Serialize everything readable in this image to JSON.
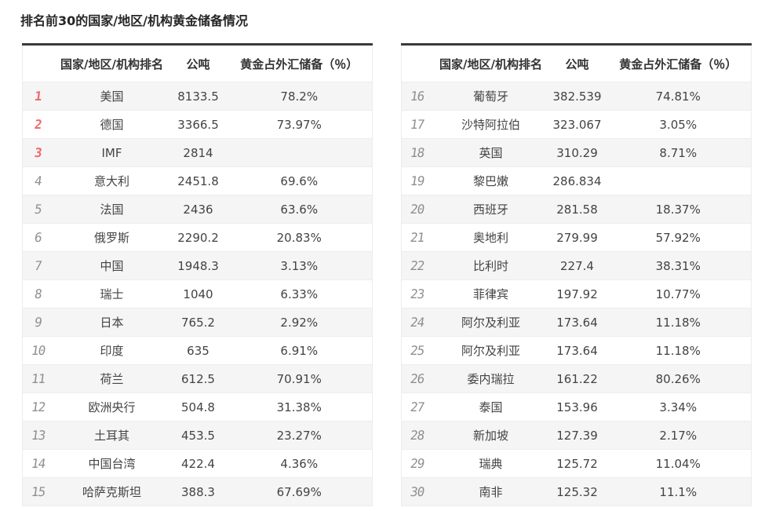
{
  "page": {
    "title": "排名前30的国家/地区/机构黄金储备情况"
  },
  "colors": {
    "accent_red": "#ef6a6e",
    "rank_gray": "#8f8f8f",
    "table_top_border": "#3a3a3a",
    "stripe_gray": "#f5f5f5"
  },
  "table_headers": [
    "国家/地区/机构排名",
    "公吨",
    "黄金占外汇储备（％）"
  ],
  "tables": [
    {
      "rows": [
        {
          "rank": "1",
          "name": "美国",
          "tonnes": "8133.5",
          "pct": "78.2%"
        },
        {
          "rank": "2",
          "name": "德国",
          "tonnes": "3366.5",
          "pct": "73.97%"
        },
        {
          "rank": "3",
          "name": "IMF",
          "tonnes": "2814",
          "pct": ""
        },
        {
          "rank": "4",
          "name": "意大利",
          "tonnes": "2451.8",
          "pct": "69.6%"
        },
        {
          "rank": "5",
          "name": "法国",
          "tonnes": "2436",
          "pct": "63.6%"
        },
        {
          "rank": "6",
          "name": "俄罗斯",
          "tonnes": "2290.2",
          "pct": "20.83%"
        },
        {
          "rank": "7",
          "name": "中国",
          "tonnes": "1948.3",
          "pct": "3.13%"
        },
        {
          "rank": "8",
          "name": "瑞士",
          "tonnes": "1040",
          "pct": "6.33%"
        },
        {
          "rank": "9",
          "name": "日本",
          "tonnes": "765.2",
          "pct": "2.92%"
        },
        {
          "rank": "10",
          "name": "印度",
          "tonnes": "635",
          "pct": "6.91%"
        },
        {
          "rank": "11",
          "name": "荷兰",
          "tonnes": "612.5",
          "pct": "70.91%"
        },
        {
          "rank": "12",
          "name": "欧洲央行",
          "tonnes": "504.8",
          "pct": "31.38%"
        },
        {
          "rank": "13",
          "name": "土耳其",
          "tonnes": "453.5",
          "pct": "23.27%"
        },
        {
          "rank": "14",
          "name": "中国台湾",
          "tonnes": "422.4",
          "pct": "4.36%"
        },
        {
          "rank": "15",
          "name": "哈萨克斯坦",
          "tonnes": "388.3",
          "pct": "67.69%"
        }
      ]
    },
    {
      "rows": [
        {
          "rank": "16",
          "name": "葡萄牙",
          "tonnes": "382.539",
          "pct": "74.81%"
        },
        {
          "rank": "17",
          "name": "沙特阿拉伯",
          "tonnes": "323.067",
          "pct": "3.05%"
        },
        {
          "rank": "18",
          "name": "英国",
          "tonnes": "310.29",
          "pct": "8.71%"
        },
        {
          "rank": "19",
          "name": "黎巴嫩",
          "tonnes": "286.834",
          "pct": ""
        },
        {
          "rank": "20",
          "name": "西班牙",
          "tonnes": "281.58",
          "pct": "18.37%"
        },
        {
          "rank": "21",
          "name": "奥地利",
          "tonnes": "279.99",
          "pct": "57.92%"
        },
        {
          "rank": "22",
          "name": "比利时",
          "tonnes": "227.4",
          "pct": "38.31%"
        },
        {
          "rank": "23",
          "name": "菲律宾",
          "tonnes": "197.92",
          "pct": "10.77%"
        },
        {
          "rank": "24",
          "name": "阿尔及利亚",
          "tonnes": "173.64",
          "pct": "11.18%"
        },
        {
          "rank": "25",
          "name": "阿尔及利亚",
          "tonnes": "173.64",
          "pct": "11.18%"
        },
        {
          "rank": "26",
          "name": "委内瑞拉",
          "tonnes": "161.22",
          "pct": "80.26%"
        },
        {
          "rank": "27",
          "name": "泰国",
          "tonnes": "153.96",
          "pct": "3.34%"
        },
        {
          "rank": "28",
          "name": "新加坡",
          "tonnes": "127.39",
          "pct": "2.17%"
        },
        {
          "rank": "29",
          "name": "瑞典",
          "tonnes": "125.72",
          "pct": "11.04%"
        },
        {
          "rank": "30",
          "name": "南非",
          "tonnes": "125.32",
          "pct": "11.1%"
        }
      ]
    }
  ]
}
